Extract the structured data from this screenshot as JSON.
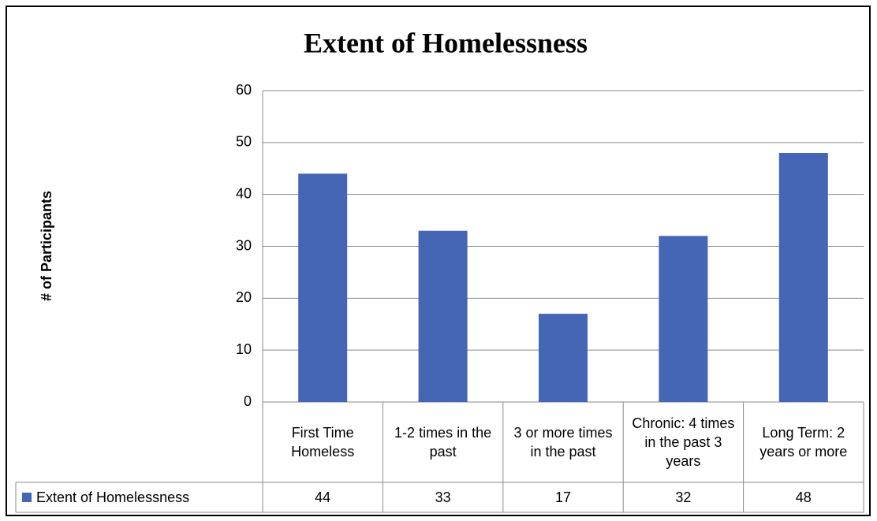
{
  "chart_data": {
    "type": "bar",
    "title": "Extent of Homelessness",
    "y_label": "# of Participants",
    "categories": [
      "First Time Homeless",
      "1-2 times in the past",
      "3 or more times in the past",
      "Chronic: 4 times in the past 3 years",
      "Long Term: 2 years or more"
    ],
    "series": [
      {
        "name": "Extent of Homelessness",
        "color": "#4565b5",
        "values": [
          44,
          33,
          17,
          32,
          48
        ]
      }
    ],
    "ylim": [
      0,
      60
    ],
    "yticks": [
      0,
      10,
      20,
      30,
      40,
      50,
      60
    ],
    "grid": true,
    "data_table": true
  }
}
